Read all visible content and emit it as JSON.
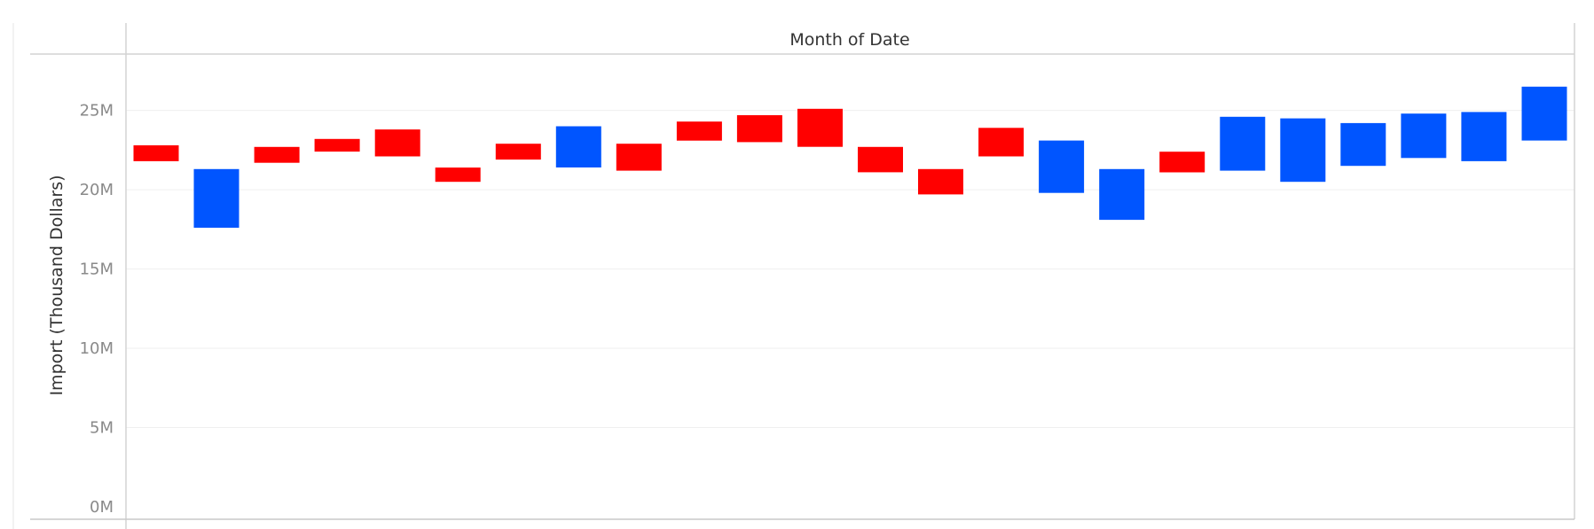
{
  "chart_data": {
    "type": "bar",
    "subtype": "floating",
    "title": "",
    "column_header": "Month of Date",
    "xlabel": "",
    "ylabel": "Import (Thousand Dollars)",
    "ylim": [
      0,
      28.5
    ],
    "y_unit": "M",
    "yticks": [
      {
        "value": 0,
        "label": "0M"
      },
      {
        "value": 5,
        "label": "5M"
      },
      {
        "value": 10,
        "label": "10M"
      },
      {
        "value": 15,
        "label": "15M"
      },
      {
        "value": 20,
        "label": "20M"
      },
      {
        "value": 25,
        "label": "25M"
      }
    ],
    "grid": true,
    "legend": "none",
    "colors": {
      "red": "#ff0000",
      "blue": "#0055ff"
    },
    "bars": [
      {
        "low": 21.8,
        "high": 22.8,
        "color": "red"
      },
      {
        "low": 17.6,
        "high": 21.3,
        "color": "blue"
      },
      {
        "low": 21.7,
        "high": 22.7,
        "color": "red"
      },
      {
        "low": 22.4,
        "high": 23.2,
        "color": "red"
      },
      {
        "low": 22.1,
        "high": 23.8,
        "color": "red"
      },
      {
        "low": 20.5,
        "high": 21.4,
        "color": "red"
      },
      {
        "low": 21.9,
        "high": 22.9,
        "color": "red"
      },
      {
        "low": 21.4,
        "high": 24.0,
        "color": "blue"
      },
      {
        "low": 21.2,
        "high": 22.9,
        "color": "red"
      },
      {
        "low": 23.1,
        "high": 24.3,
        "color": "red"
      },
      {
        "low": 23.0,
        "high": 24.7,
        "color": "red"
      },
      {
        "low": 22.7,
        "high": 25.1,
        "color": "red"
      },
      {
        "low": 21.1,
        "high": 22.7,
        "color": "red"
      },
      {
        "low": 19.7,
        "high": 21.3,
        "color": "red"
      },
      {
        "low": 22.1,
        "high": 23.9,
        "color": "red"
      },
      {
        "low": 19.8,
        "high": 23.1,
        "color": "blue"
      },
      {
        "low": 18.1,
        "high": 21.3,
        "color": "blue"
      },
      {
        "low": 21.1,
        "high": 22.4,
        "color": "red"
      },
      {
        "low": 21.2,
        "high": 24.6,
        "color": "blue"
      },
      {
        "low": 20.5,
        "high": 24.5,
        "color": "blue"
      },
      {
        "low": 21.5,
        "high": 24.2,
        "color": "blue"
      },
      {
        "low": 22.0,
        "high": 24.8,
        "color": "blue"
      },
      {
        "low": 21.8,
        "high": 24.9,
        "color": "blue"
      },
      {
        "low": 23.1,
        "high": 26.5,
        "color": "blue"
      }
    ]
  }
}
